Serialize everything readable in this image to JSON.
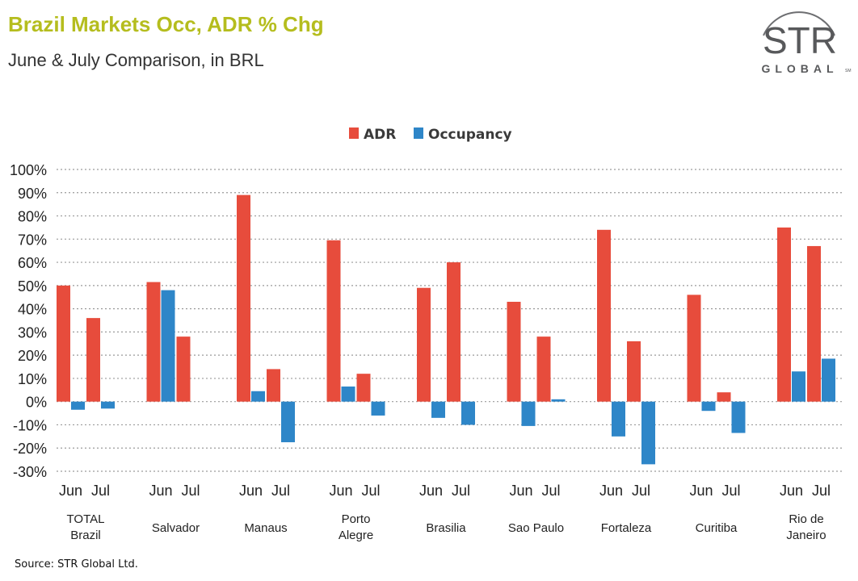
{
  "header": {
    "title": "Brazil Markets Occ, ADR % Chg",
    "subtitle": "June & July Comparison, in BRL"
  },
  "logo": {
    "text_top": "STR",
    "text_bottom": "GLOBAL",
    "mark": "SM"
  },
  "footer": {
    "source": "Source: STR Global Ltd."
  },
  "colors": {
    "adr": "#e74c3c",
    "occupancy": "#2e86c8",
    "title": "#b5bd1e",
    "grid": "#9a9a9a"
  },
  "chart_data": {
    "type": "bar",
    "title": "Brazil Markets Occ, ADR % Chg",
    "subtitle": "June & July Comparison, in BRL",
    "legend": {
      "position": "top-center",
      "entries": [
        "ADR",
        "Occupancy"
      ]
    },
    "ylim": [
      -30,
      100
    ],
    "yticks": [
      100,
      90,
      80,
      70,
      60,
      50,
      40,
      30,
      20,
      10,
      0,
      -10,
      -20,
      -30
    ],
    "ytick_labels": [
      "100%",
      "90%",
      "80%",
      "70%",
      "60%",
      "50%",
      "40%",
      "30%",
      "20%",
      "10%",
      "0%",
      "-10%",
      "-20%",
      "-30%"
    ],
    "grid": "horizontal-dotted",
    "groups": [
      {
        "market": [
          "TOTAL",
          "Brazil"
        ],
        "months": [
          "Jun",
          "Jul"
        ],
        "adr": [
          50,
          36
        ],
        "occupancy": [
          -3.5,
          -3
        ]
      },
      {
        "market": [
          "Salvador"
        ],
        "months": [
          "Jun",
          "Jul"
        ],
        "adr": [
          51.5,
          28
        ],
        "occupancy": [
          48,
          0
        ]
      },
      {
        "market": [
          "Manaus"
        ],
        "months": [
          "Jun",
          "Jul"
        ],
        "adr": [
          89,
          14
        ],
        "occupancy": [
          4.5,
          -17.5
        ]
      },
      {
        "market": [
          "Porto",
          "Alegre"
        ],
        "months": [
          "Jun",
          "Jul"
        ],
        "adr": [
          69.5,
          12
        ],
        "occupancy": [
          6.5,
          -6
        ]
      },
      {
        "market": [
          "Brasilia"
        ],
        "months": [
          "Jun",
          "Jul"
        ],
        "adr": [
          49,
          60
        ],
        "occupancy": [
          -7,
          -10
        ]
      },
      {
        "market": [
          "Sao Paulo"
        ],
        "months": [
          "Jun",
          "Jul"
        ],
        "adr": [
          43,
          28
        ],
        "occupancy": [
          -10.5,
          1
        ]
      },
      {
        "market": [
          "Fortaleza"
        ],
        "months": [
          "Jun",
          "Jul"
        ],
        "adr": [
          74,
          26
        ],
        "occupancy": [
          -15,
          -27
        ]
      },
      {
        "market": [
          "Curitiba"
        ],
        "months": [
          "Jun",
          "Jul"
        ],
        "adr": [
          46,
          4
        ],
        "occupancy": [
          -4,
          -13.5
        ]
      },
      {
        "market": [
          "Rio de",
          "Janeiro"
        ],
        "months": [
          "Jun",
          "Jul"
        ],
        "adr": [
          75,
          67
        ],
        "occupancy": [
          13,
          18.5
        ]
      }
    ]
  }
}
